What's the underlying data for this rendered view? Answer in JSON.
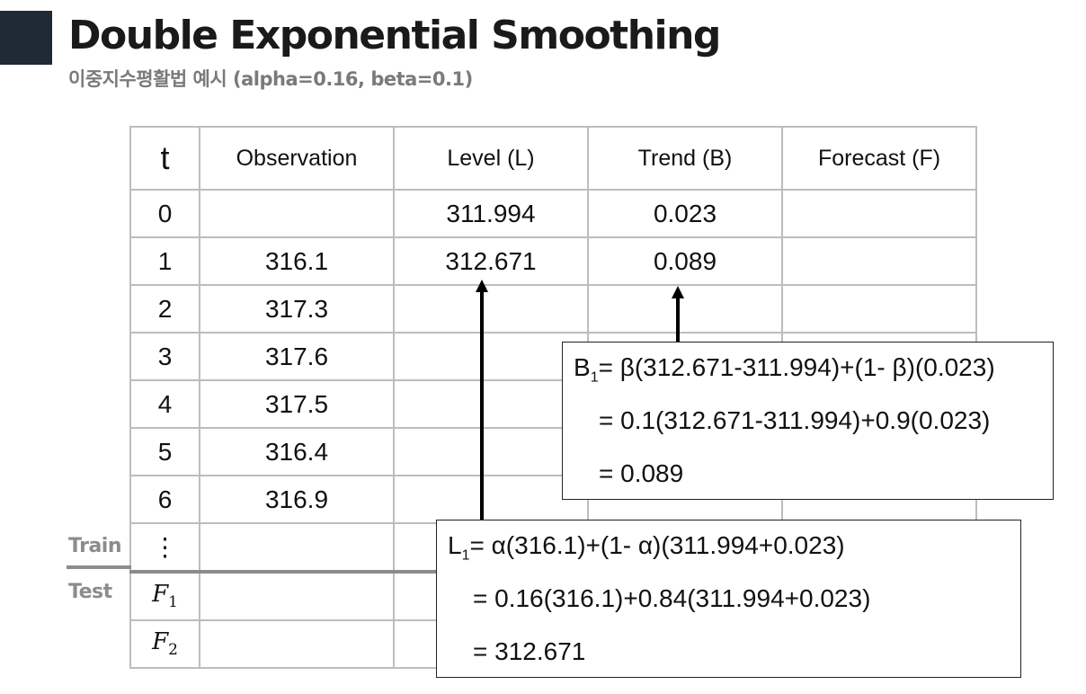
{
  "title": "Double Exponential Smoothing",
  "subtitle": "이중지수평활법 예시 (alpha=0.16, beta=0.1)",
  "table": {
    "headers": [
      "t",
      "Observation",
      "Level (L)",
      "Trend (B)",
      "Forecast (F)"
    ],
    "rows": [
      {
        "t": "0",
        "observation": "",
        "level": "311.994",
        "trend": "0.023",
        "forecast": ""
      },
      {
        "t": "1",
        "observation": "316.1",
        "level": "312.671",
        "trend": "0.089",
        "forecast": ""
      },
      {
        "t": "2",
        "observation": "317.3",
        "level": "",
        "trend": "",
        "forecast": ""
      },
      {
        "t": "3",
        "observation": "317.6",
        "level": "",
        "trend": "",
        "forecast": ""
      },
      {
        "t": "4",
        "observation": "317.5",
        "level": "",
        "trend": "",
        "forecast": ""
      },
      {
        "t": "5",
        "observation": "316.4",
        "level": "",
        "trend": "",
        "forecast": ""
      },
      {
        "t": "6",
        "observation": "316.9",
        "level": "",
        "trend": "",
        "forecast": ""
      },
      {
        "t": "⋮",
        "observation": "",
        "level": "",
        "trend": "",
        "forecast": ""
      }
    ],
    "forecast_rows": [
      {
        "symbol": "F",
        "index": "1"
      },
      {
        "symbol": "F",
        "index": "2"
      }
    ]
  },
  "labels": {
    "train": "Train",
    "test": "Test"
  },
  "trend_formula": {
    "lhs_symbol": "B",
    "lhs_sub": "1",
    "line1_rhs": "= β(312.671-311.994)+(1- β)(0.023)",
    "line2": "= 0.1(312.671-311.994)+0.9(0.023)",
    "line3": "= 0.089"
  },
  "level_formula": {
    "lhs_symbol": "L",
    "lhs_sub": "1",
    "line1_rhs": "= α(316.1)+(1- α)(311.994+0.023)",
    "line2": "= 0.16(316.1)+0.84(311.994+0.023)",
    "line3": "= 312.671"
  }
}
